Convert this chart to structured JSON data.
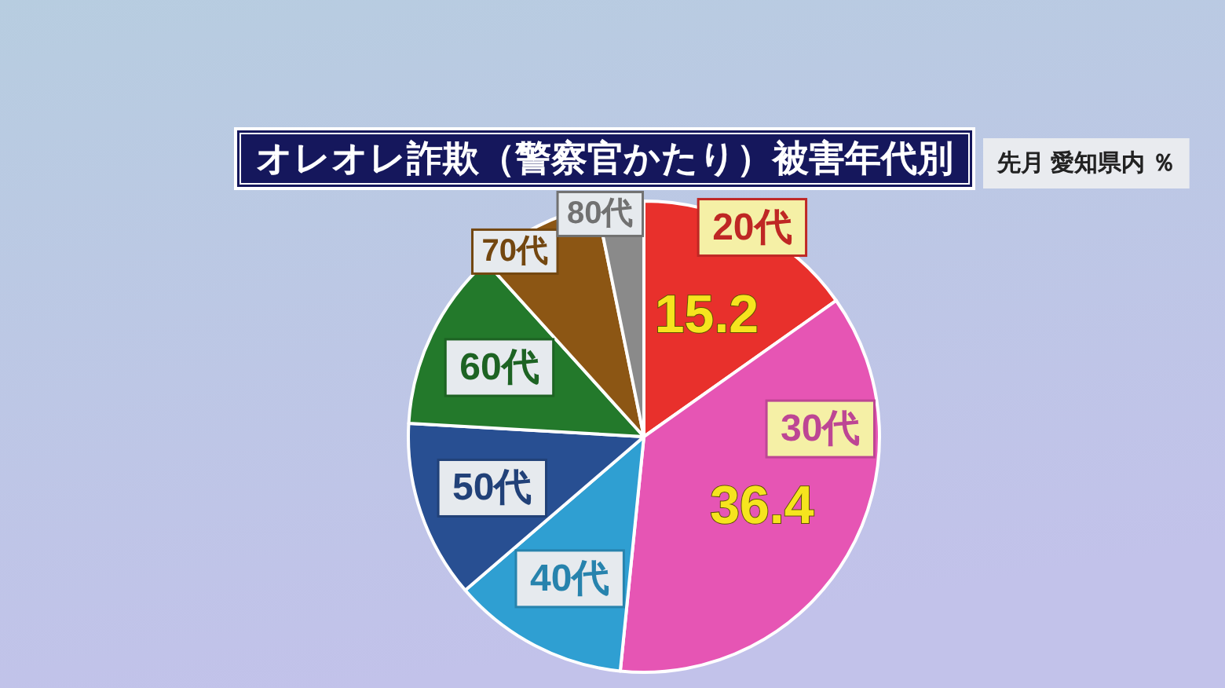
{
  "chart_data": {
    "type": "pie",
    "title": "オレオレ詐欺（警察官かたり）被害年代別",
    "subtitle": "先月 愛知県内 ％",
    "categories": [
      "20代",
      "30代",
      "40代",
      "50代",
      "60代",
      "70代",
      "80代"
    ],
    "values": [
      15.2,
      36.4,
      12.1,
      12.2,
      12.4,
      8.5,
      3.2
    ],
    "colors": [
      "#e8302c",
      "#e655b4",
      "#2f9fd2",
      "#284f92",
      "#23792b",
      "#8c5614",
      "#8a8a8a"
    ],
    "value_labels": [
      "15.2",
      "36.4",
      null,
      null,
      null,
      null,
      null
    ]
  }
}
